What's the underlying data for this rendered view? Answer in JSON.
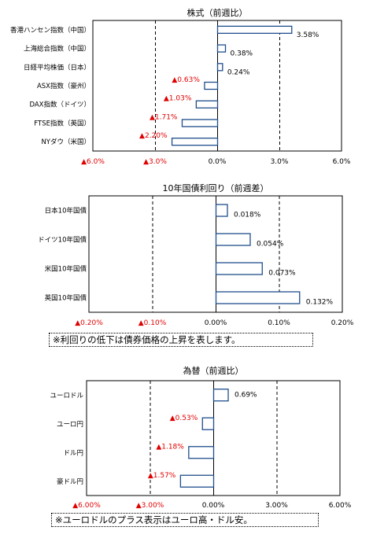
{
  "chart_data": [
    {
      "type": "bar",
      "orientation": "horizontal",
      "title": "株式（前週比）",
      "categories": [
        "香港ハンセン指数（中国）",
        "上海総合指数（中国）",
        "日経平均株価（日本）",
        "ASX指数（豪州）",
        "DAX指数（ドイツ）",
        "FTSE指数（英国）",
        "NYダウ（米国）"
      ],
      "values": [
        3.58,
        0.38,
        0.24,
        -0.63,
        -1.03,
        -1.71,
        -2.2
      ],
      "data_labels": [
        "3.58%",
        "0.38%",
        "0.24%",
        "▲0.63%",
        "▲1.03%",
        "▲1.71%",
        "▲2.20%"
      ],
      "xlim": [
        -6.0,
        6.0
      ],
      "xticks": [
        -6,
        -3,
        0,
        3,
        6
      ],
      "xtick_labels": [
        "▲6.0%",
        "▲3.0%",
        "0.0%",
        "3.0%",
        "6.0%"
      ],
      "gridlines": "dashed vertical at major ticks",
      "legend": "none"
    },
    {
      "type": "bar",
      "orientation": "horizontal",
      "title": "10年国債利回り（前週差）",
      "categories": [
        "日本10年国債",
        "ドイツ10年国債",
        "米国10年国債",
        "英国10年国債"
      ],
      "values": [
        0.018,
        0.054,
        0.073,
        0.132
      ],
      "data_labels": [
        "0.018%",
        "0.054%",
        "0.073%",
        "0.132%"
      ],
      "xlim": [
        -0.2,
        0.2
      ],
      "xticks": [
        -0.2,
        -0.1,
        0,
        0.1,
        0.2
      ],
      "xtick_labels": [
        "▲0.20%",
        "▲0.10%",
        "0.00%",
        "0.10%",
        "0.20%"
      ],
      "gridlines": "dashed vertical at major ticks",
      "legend": "none",
      "note": "※利回りの低下は債券価格の上昇を表します。"
    },
    {
      "type": "bar",
      "orientation": "horizontal",
      "title": "為替（前週比）",
      "categories": [
        "ユーロドル",
        "ユーロ円",
        "ドル円",
        "豪ドル円"
      ],
      "values": [
        0.69,
        -0.53,
        -1.18,
        -1.57
      ],
      "data_labels": [
        "0.69%",
        "▲0.53%",
        "▲1.18%",
        "▲1.57%"
      ],
      "xlim": [
        -6.0,
        6.0
      ],
      "xticks": [
        -6,
        -3,
        0,
        3,
        6
      ],
      "xtick_labels": [
        "▲6.00%",
        "▲3.00%",
        "0.00%",
        "3.00%",
        "6.00%"
      ],
      "gridlines": "dashed vertical at major ticks",
      "legend": "none",
      "note": "※ユーロドルのプラス表示はユーロ高・ドル安。"
    }
  ],
  "colors": {
    "bar_fill": "#ffffff",
    "bar_stroke": "#1f4e8c",
    "negative_text": "#e00000",
    "axis": "#000000"
  }
}
